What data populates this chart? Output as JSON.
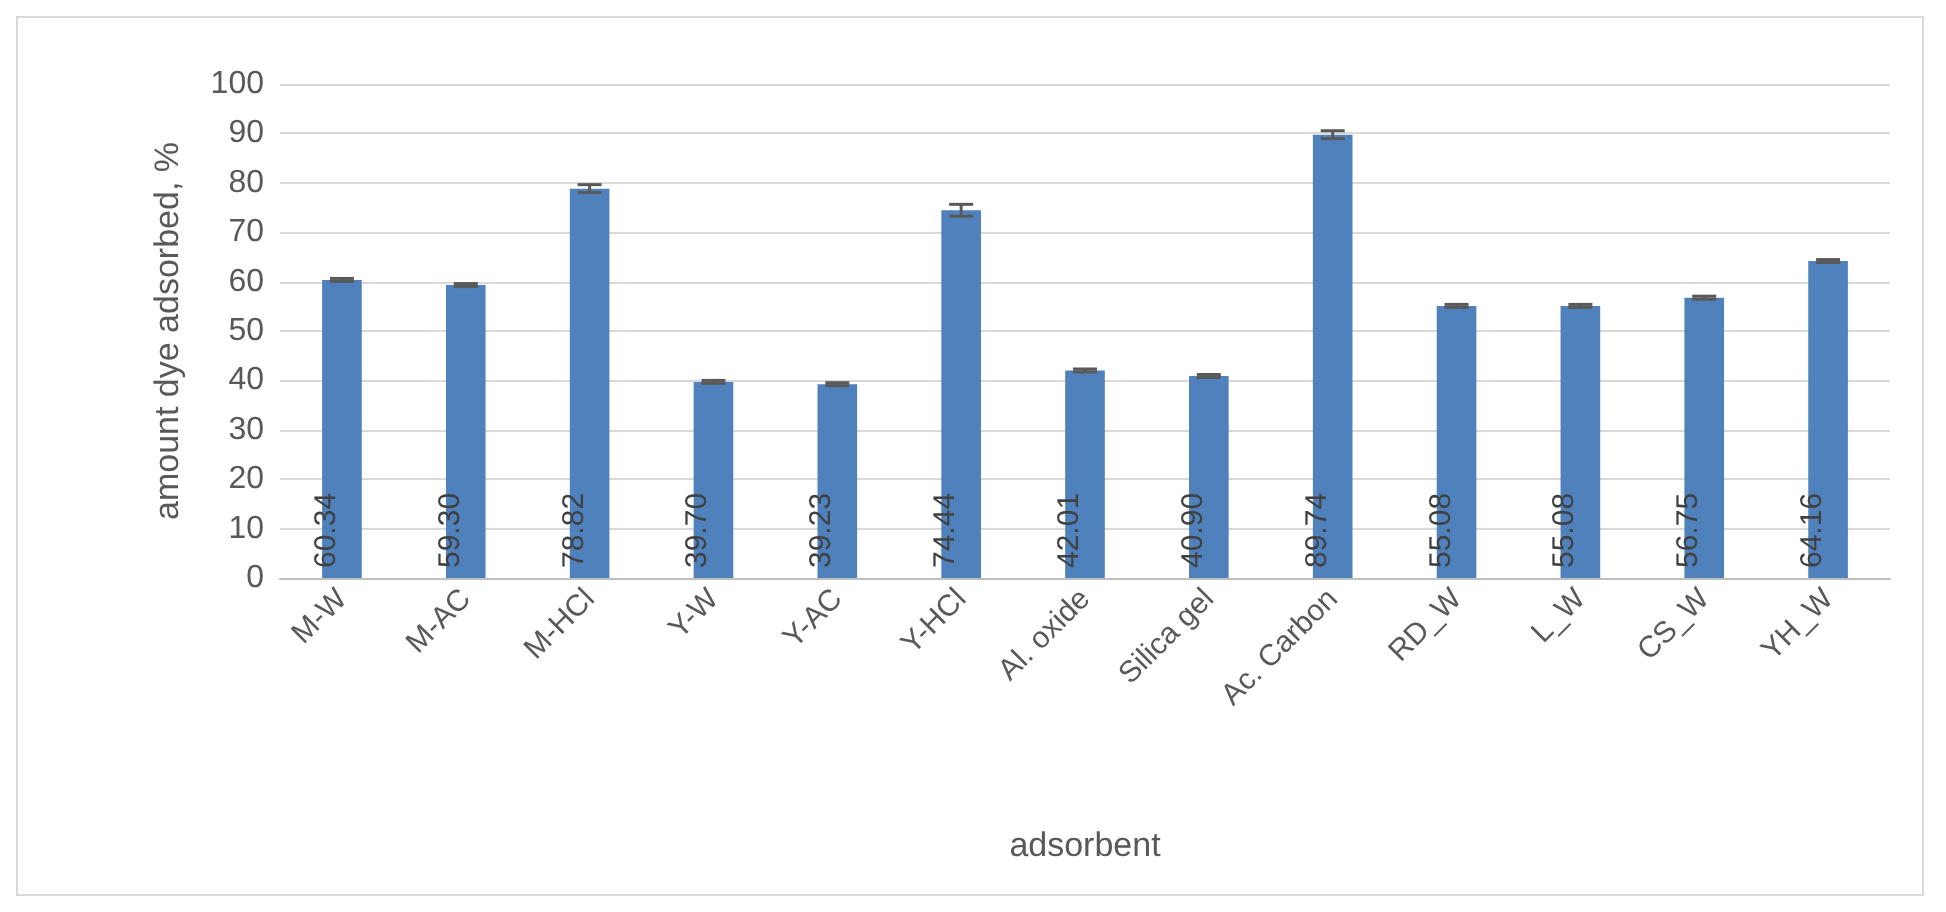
{
  "chart_data": {
    "type": "bar",
    "xlabel": "adsorbent",
    "ylabel": "amount dye adsorbed, %",
    "categories": [
      "M-W",
      "M-AC",
      "M-HCl",
      "Y-W",
      "Y-AC",
      "Y-HCl",
      "Al. oxide",
      "Silica gel",
      "Ac. Carbon",
      "RD_W",
      "L_W",
      "CS_W",
      "YH_W"
    ],
    "values": [
      60.34,
      59.3,
      78.82,
      39.7,
      39.23,
      74.44,
      42.01,
      40.9,
      89.74,
      55.08,
      55.08,
      56.75,
      64.16
    ],
    "value_labels": [
      "60.34",
      "59.30",
      "78.82",
      "39.70",
      "39.23",
      "74.44",
      "42.01",
      "40.90",
      "89.74",
      "55.08",
      "55.08",
      "56.75",
      "64.16"
    ],
    "errors": [
      0.3,
      0.3,
      0.8,
      0.3,
      0.3,
      1.2,
      0.3,
      0.3,
      0.8,
      0.3,
      0.3,
      0.3,
      0.3
    ],
    "color": "#4f81bd",
    "ylim": [
      0,
      100
    ],
    "yticks": [
      0,
      10,
      20,
      30,
      40,
      50,
      60,
      70,
      80,
      90,
      100
    ],
    "grid": "y"
  }
}
